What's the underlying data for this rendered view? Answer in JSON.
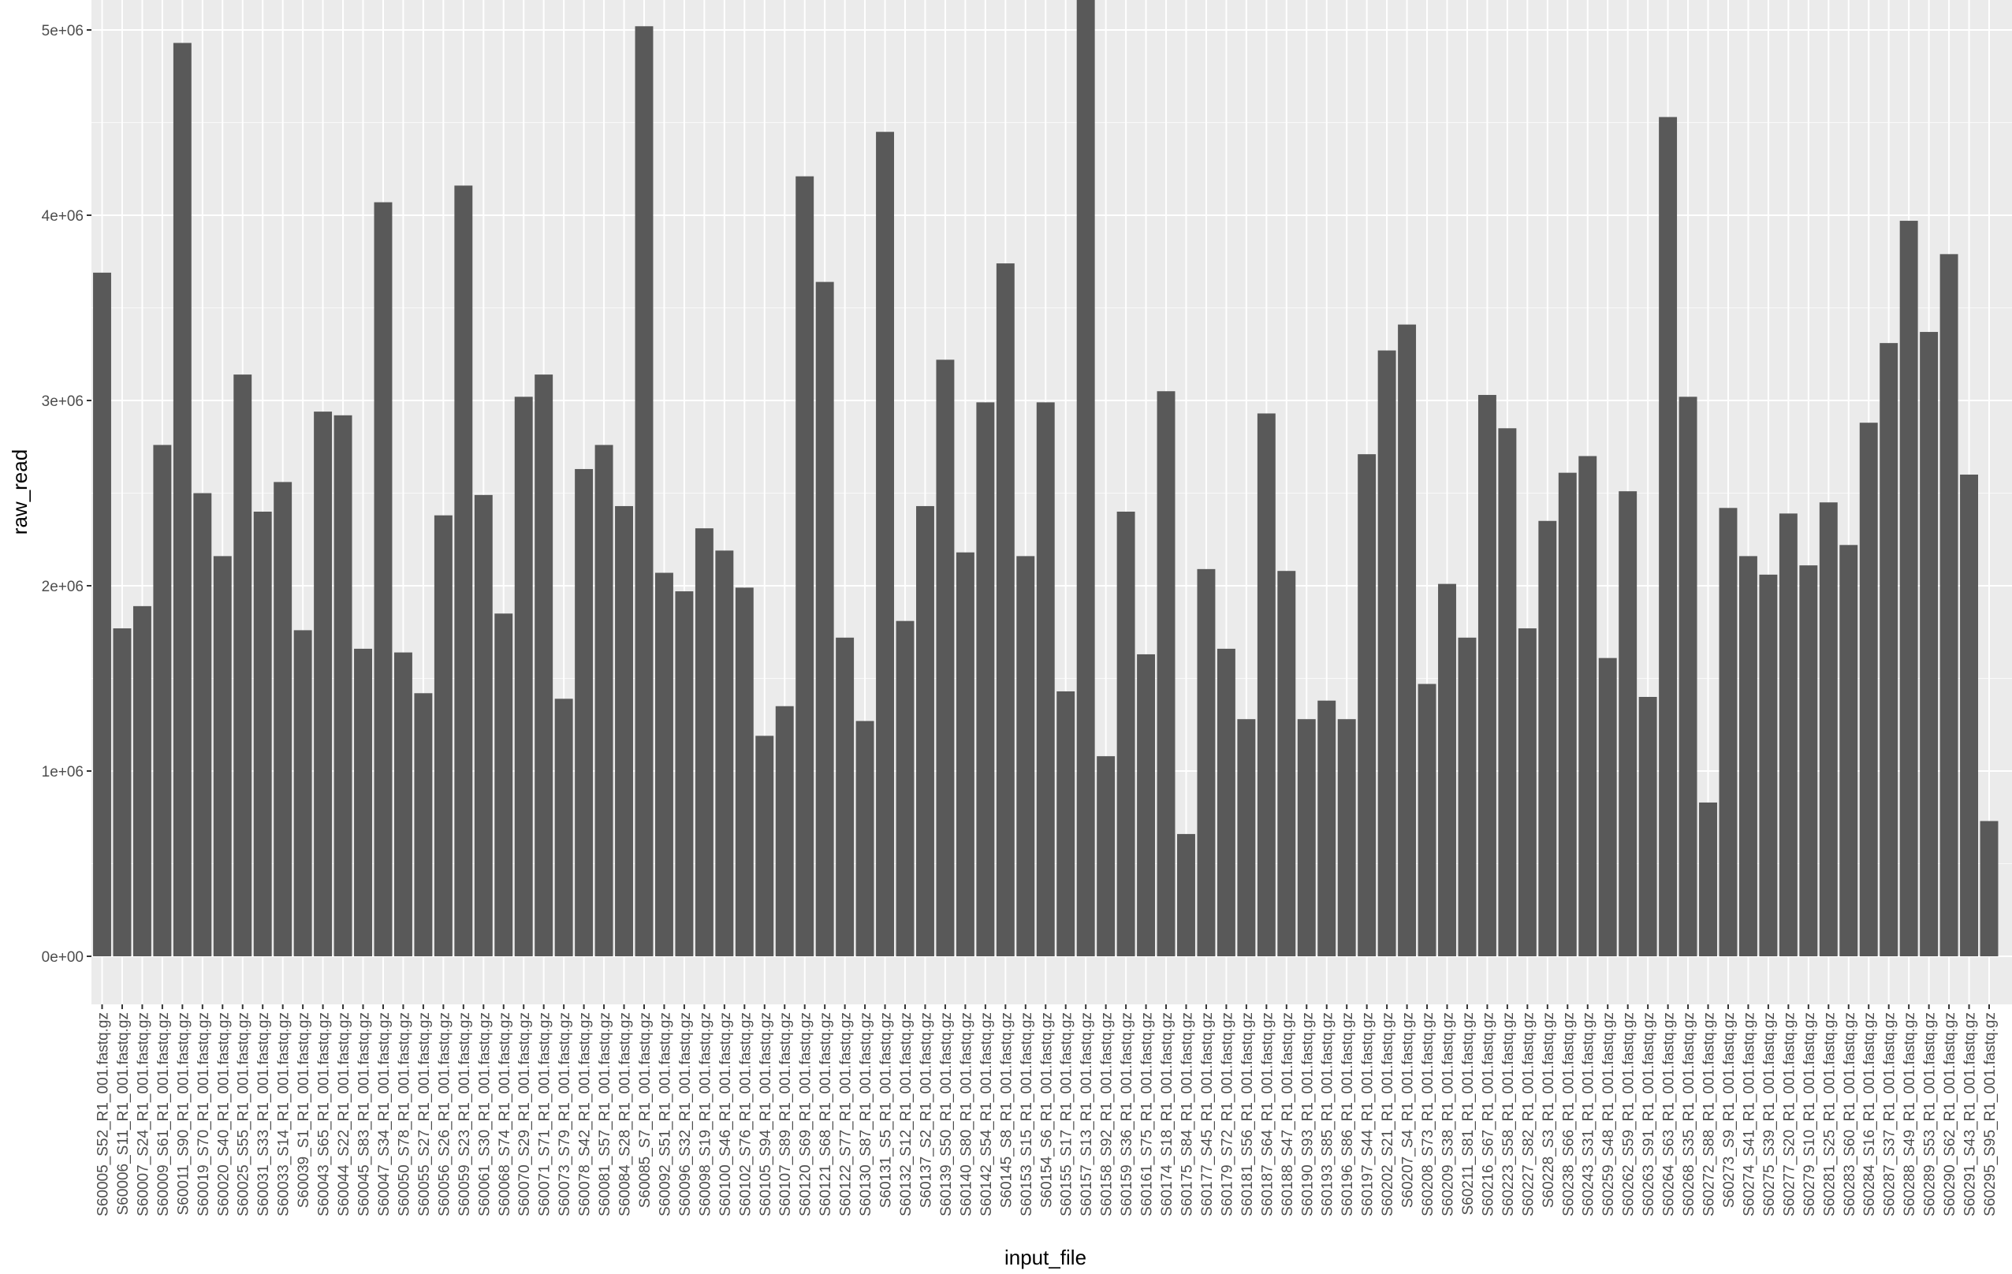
{
  "chart_data": {
    "type": "bar",
    "xlabel": "input_file",
    "ylabel": "raw_read",
    "ylim": [
      0,
      5150000
    ],
    "y_ticks": [
      0,
      1000000,
      2000000,
      3000000,
      4000000,
      5000000
    ],
    "y_tick_labels": [
      "0e+00",
      "1e+06",
      "2e+06",
      "3e+06",
      "4e+06",
      "5e+06"
    ],
    "grid": true,
    "legend": "none",
    "colors": {
      "panel": "#ebebeb",
      "grid_major": "#ffffff",
      "bar": "#595959",
      "tick_text": "#4d4d4d",
      "axis_title": "#000000"
    },
    "categories": [
      "S60005_S52_R1_001.fastq.gz",
      "S60006_S11_R1_001.fastq.gz",
      "S60007_S24_R1_001.fastq.gz",
      "S60009_S61_R1_001.fastq.gz",
      "S60011_S90_R1_001.fastq.gz",
      "S60019_S70_R1_001.fastq.gz",
      "S60020_S40_R1_001.fastq.gz",
      "S60025_S55_R1_001.fastq.gz",
      "S60031_S33_R1_001.fastq.gz",
      "S60033_S14_R1_001.fastq.gz",
      "S60039_S1_R1_001.fastq.gz",
      "S60043_S65_R1_001.fastq.gz",
      "S60044_S22_R1_001.fastq.gz",
      "S60045_S83_R1_001.fastq.gz",
      "S60047_S34_R1_001.fastq.gz",
      "S60050_S78_R1_001.fastq.gz",
      "S60055_S27_R1_001.fastq.gz",
      "S60056_S26_R1_001.fastq.gz",
      "S60059_S23_R1_001.fastq.gz",
      "S60061_S30_R1_001.fastq.gz",
      "S60068_S74_R1_001.fastq.gz",
      "S60070_S29_R1_001.fastq.gz",
      "S60071_S71_R1_001.fastq.gz",
      "S60073_S79_R1_001.fastq.gz",
      "S60078_S42_R1_001.fastq.gz",
      "S60081_S57_R1_001.fastq.gz",
      "S60084_S28_R1_001.fastq.gz",
      "S60085_S7_R1_001.fastq.gz",
      "S60092_S51_R1_001.fastq.gz",
      "S60096_S32_R1_001.fastq.gz",
      "S60098_S19_R1_001.fastq.gz",
      "S60100_S46_R1_001.fastq.gz",
      "S60102_S76_R1_001.fastq.gz",
      "S60105_S94_R1_001.fastq.gz",
      "S60107_S89_R1_001.fastq.gz",
      "S60120_S69_R1_001.fastq.gz",
      "S60121_S68_R1_001.fastq.gz",
      "S60122_S77_R1_001.fastq.gz",
      "S60130_S87_R1_001.fastq.gz",
      "S60131_S5_R1_001.fastq.gz",
      "S60132_S12_R1_001.fastq.gz",
      "S60137_S2_R1_001.fastq.gz",
      "S60139_S50_R1_001.fastq.gz",
      "S60140_S80_R1_001.fastq.gz",
      "S60142_S54_R1_001.fastq.gz",
      "S60145_S8_R1_001.fastq.gz",
      "S60153_S15_R1_001.fastq.gz",
      "S60154_S6_R1_001.fastq.gz",
      "S60155_S17_R1_001.fastq.gz",
      "S60157_S13_R1_001.fastq.gz",
      "S60158_S92_R1_001.fastq.gz",
      "S60159_S36_R1_001.fastq.gz",
      "S60161_S75_R1_001.fastq.gz",
      "S60174_S18_R1_001.fastq.gz",
      "S60175_S84_R1_001.fastq.gz",
      "S60177_S45_R1_001.fastq.gz",
      "S60179_S72_R1_001.fastq.gz",
      "S60181_S56_R1_001.fastq.gz",
      "S60187_S64_R1_001.fastq.gz",
      "S60188_S47_R1_001.fastq.gz",
      "S60190_S93_R1_001.fastq.gz",
      "S60193_S85_R1_001.fastq.gz",
      "S60196_S86_R1_001.fastq.gz",
      "S60197_S44_R1_001.fastq.gz",
      "S60202_S21_R1_001.fastq.gz",
      "S60207_S4_R1_001.fastq.gz",
      "S60208_S73_R1_001.fastq.gz",
      "S60209_S38_R1_001.fastq.gz",
      "S60211_S81_R1_001.fastq.gz",
      "S60216_S67_R1_001.fastq.gz",
      "S60223_S58_R1_001.fastq.gz",
      "S60227_S82_R1_001.fastq.gz",
      "S60228_S3_R1_001.fastq.gz",
      "S60238_S66_R1_001.fastq.gz",
      "S60243_S31_R1_001.fastq.gz",
      "S60259_S48_R1_001.fastq.gz",
      "S60262_S59_R1_001.fastq.gz",
      "S60263_S91_R1_001.fastq.gz",
      "S60264_S63_R1_001.fastq.gz",
      "S60268_S35_R1_001.fastq.gz",
      "S60272_S88_R1_001.fastq.gz",
      "S60273_S9_R1_001.fastq.gz",
      "S60274_S41_R1_001.fastq.gz",
      "S60275_S39_R1_001.fastq.gz",
      "S60277_S20_R1_001.fastq.gz",
      "S60279_S10_R1_001.fastq.gz",
      "S60281_S25_R1_001.fastq.gz",
      "S60283_S60_R1_001.fastq.gz",
      "S60284_S16_R1_001.fastq.gz",
      "S60287_S37_R1_001.fastq.gz",
      "S60288_S49_R1_001.fastq.gz",
      "S60289_S53_R1_001.fastq.gz",
      "S60290_S62_R1_001.fastq.gz",
      "S60291_S43_R1_001.fastq.gz",
      "S60295_S95_R1_001.fastq.gz"
    ],
    "values": [
      3690000,
      1770000,
      1890000,
      2760000,
      4930000,
      2500000,
      2160000,
      3140000,
      2400000,
      2560000,
      1760000,
      2940000,
      2920000,
      1660000,
      4070000,
      1640000,
      1420000,
      2380000,
      4160000,
      2490000,
      1850000,
      3020000,
      3140000,
      1390000,
      2630000,
      2760000,
      2430000,
      5020000,
      2070000,
      1970000,
      2310000,
      2190000,
      1990000,
      1190000,
      1350000,
      4210000,
      3640000,
      1720000,
      1270000,
      4450000,
      1810000,
      2430000,
      3220000,
      2180000,
      2990000,
      3740000,
      2160000,
      2990000,
      1430000,
      5180000,
      1080000,
      2400000,
      1630000,
      3050000,
      660000,
      2090000,
      1660000,
      1280000,
      2930000,
      2080000,
      1280000,
      1380000,
      1280000,
      2710000,
      3270000,
      3410000,
      1470000,
      2010000,
      1720000,
      3030000,
      2850000,
      1770000,
      2350000,
      2610000,
      2700000,
      1610000,
      2510000,
      1400000,
      4530000,
      3020000,
      830000,
      2420000,
      2160000,
      2060000,
      2390000,
      2110000,
      2450000,
      2220000,
      2880000,
      3310000,
      3970000,
      3370000,
      3790000,
      2600000,
      730000
    ]
  }
}
